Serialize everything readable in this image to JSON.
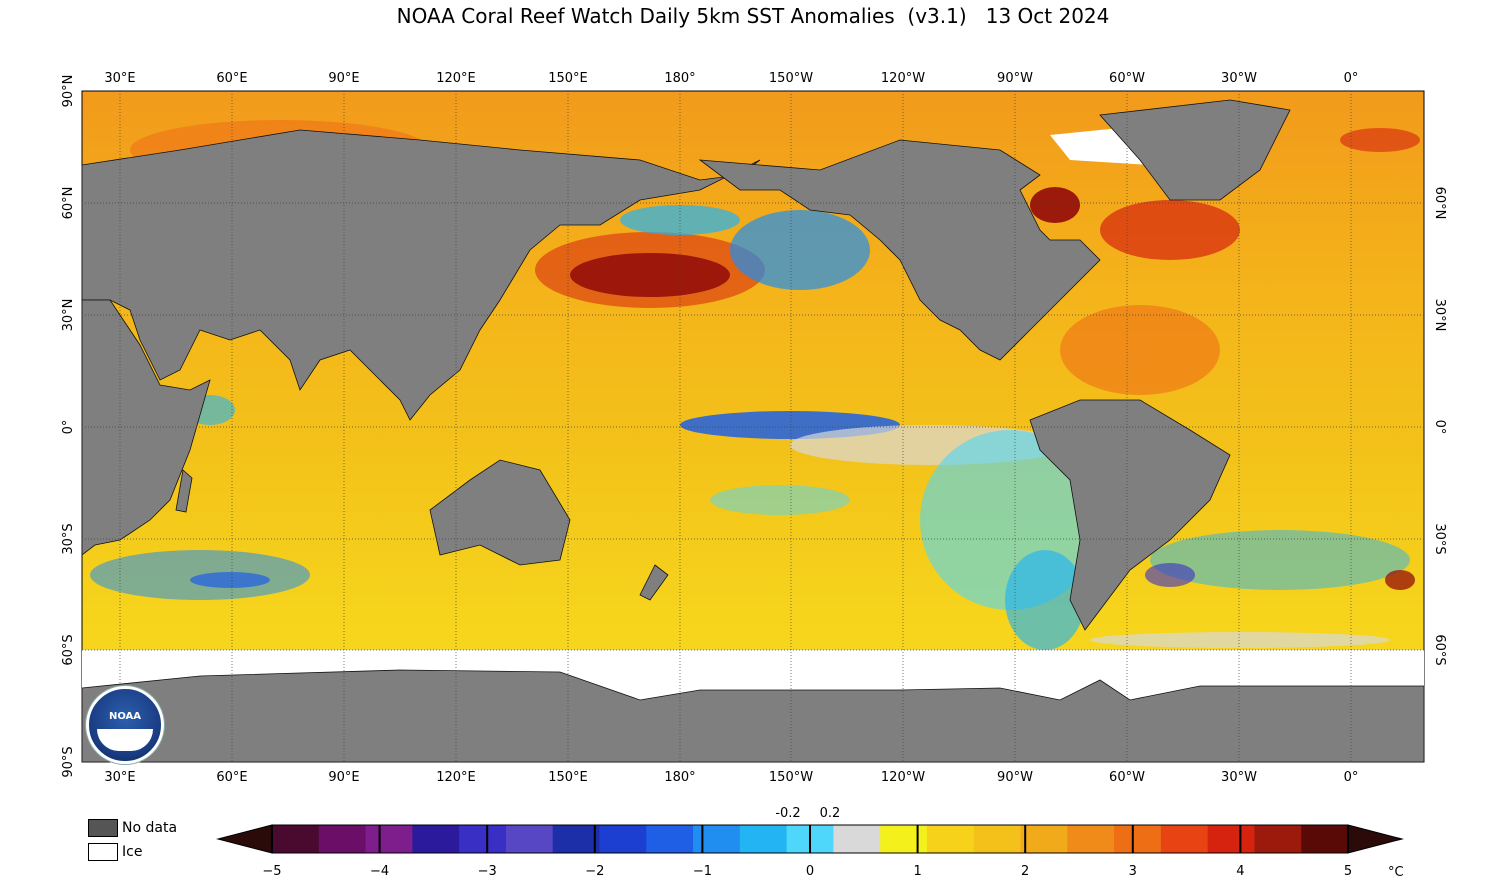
{
  "title": "NOAA Coral Reef Watch Daily 5km SST Anomalies  (v3.1)   13 Oct 2024",
  "lon_labels": [
    "30°E",
    "60°E",
    "90°E",
    "120°E",
    "150°E",
    "180°",
    "150°W",
    "120°W",
    "90°W",
    "60°W",
    "30°W",
    "0°"
  ],
  "lat_labels_left": [
    "90°N",
    "60°N",
    "30°N",
    "0°",
    "30°S",
    "60°S",
    "90°S"
  ],
  "lat_labels_right": [
    "60°N",
    "30°N",
    "0°",
    "30°S",
    "60°S"
  ],
  "legend": {
    "no_data": "No data",
    "ice": "Ice",
    "no_data_color": "#555555",
    "ice_color": "#ffffff"
  },
  "colorbar": {
    "ticks": [
      "−5",
      "−4",
      "−3",
      "−2",
      "−1",
      "0",
      "1",
      "2",
      "3",
      "4",
      "5"
    ],
    "small_ticks": [
      "-0.2",
      "0.2"
    ],
    "unit": "°C",
    "colors": [
      "#4a0a2f",
      "#6b0e67",
      "#7e1d8c",
      "#2b1a9c",
      "#3a2fc4",
      "#5847c4",
      "#1c2ea8",
      "#1d3fd1",
      "#1f5fe6",
      "#1f8ef0",
      "#23b4f4",
      "#4ed7fb",
      "#d9d9d9",
      "#f3f01c",
      "#f6d31a",
      "#f4c01a",
      "#f0aa1a",
      "#f08a18",
      "#ee6e16",
      "#e84413",
      "#d62310",
      "#9b1a0c",
      "#5a0a06"
    ]
  },
  "colors": {
    "land": "#7f7f7f",
    "ocean_base": "#f2c81d",
    "ice": "#ffffff"
  },
  "logo": "NOAA"
}
